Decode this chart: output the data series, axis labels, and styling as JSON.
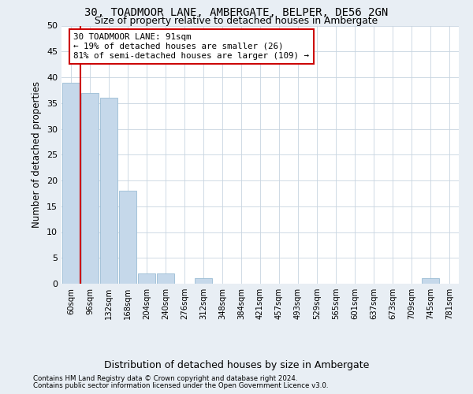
{
  "title": "30, TOADMOOR LANE, AMBERGATE, BELPER, DE56 2GN",
  "subtitle": "Size of property relative to detached houses in Ambergate",
  "xlabel": "Distribution of detached houses by size in Ambergate",
  "ylabel": "Number of detached properties",
  "categories": [
    "60sqm",
    "96sqm",
    "132sqm",
    "168sqm",
    "204sqm",
    "240sqm",
    "276sqm",
    "312sqm",
    "348sqm",
    "384sqm",
    "421sqm",
    "457sqm",
    "493sqm",
    "529sqm",
    "565sqm",
    "601sqm",
    "637sqm",
    "673sqm",
    "709sqm",
    "745sqm",
    "781sqm"
  ],
  "values": [
    39,
    37,
    36,
    18,
    2,
    2,
    0,
    1,
    0,
    0,
    0,
    0,
    0,
    0,
    0,
    0,
    0,
    0,
    0,
    1,
    0
  ],
  "bar_color": "#c5d8ea",
  "bar_edge_color": "#9bbdd4",
  "marker_line_color": "#cc0000",
  "annotation_line1": "30 TOADMOOR LANE: 91sqm",
  "annotation_line2": "← 19% of detached houses are smaller (26)",
  "annotation_line3": "81% of semi-detached houses are larger (109) →",
  "annotation_box_facecolor": "#ffffff",
  "annotation_box_edgecolor": "#cc0000",
  "ylim": [
    0,
    50
  ],
  "yticks": [
    0,
    5,
    10,
    15,
    20,
    25,
    30,
    35,
    40,
    45,
    50
  ],
  "footer1": "Contains HM Land Registry data © Crown copyright and database right 2024.",
  "footer2": "Contains public sector information licensed under the Open Government Licence v3.0.",
  "bg_color": "#e8eef4",
  "plot_bg_color": "#ffffff",
  "grid_color": "#c8d4e0"
}
